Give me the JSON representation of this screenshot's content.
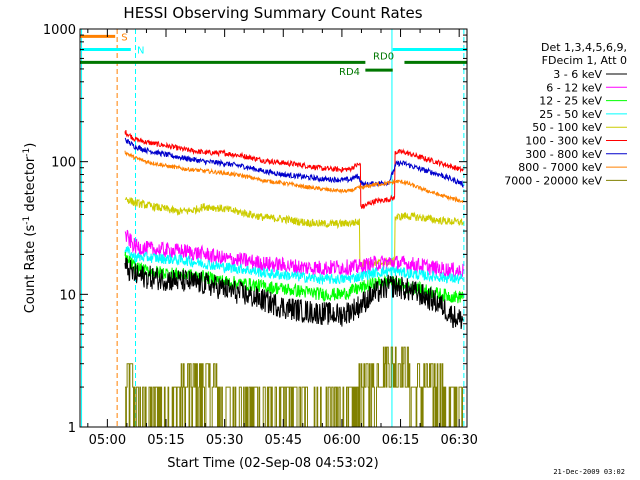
{
  "chart_data": {
    "type": "line",
    "title": "HESSI Observing Summary Count Rates",
    "xlabel": "Start Time (02-Sep-08 04:53:02)",
    "ylabel_main": "Count Rate (s",
    "ylabel_sup1": "-1",
    "ylabel_mid": " detector",
    "ylabel_sup2": "-1",
    "ylabel_end": ")",
    "x_range_min": [
      293,
      392
    ],
    "y_scale": "log",
    "ylim": [
      1,
      1000
    ],
    "x_ticks": [
      {
        "label": "05:00",
        "min": 300
      },
      {
        "label": "05:15",
        "min": 315
      },
      {
        "label": "05:30",
        "min": 330
      },
      {
        "label": "05:45",
        "min": 345
      },
      {
        "label": "06:00",
        "min": 360
      },
      {
        "label": "06:15",
        "min": 375
      },
      {
        "label": "06:30",
        "min": 390
      }
    ],
    "y_ticks": [
      {
        "label": "1",
        "value": 1
      },
      {
        "label": "10",
        "value": 10
      },
      {
        "label": "100",
        "value": 100
      },
      {
        "label": "1000",
        "value": 1000
      }
    ],
    "legend": {
      "position": "right",
      "header": [
        "Det 1,3,4,5,6,9,",
        "FDecim 1, Att 0"
      ],
      "entries": [
        {
          "label": "3 - 6 keV",
          "color": "#000000"
        },
        {
          "label": "6 - 12 keV",
          "color": "#ff00ff"
        },
        {
          "label": "12 - 25 keV",
          "color": "#00ff00"
        },
        {
          "label": "25 - 50 keV",
          "color": "#00ffff"
        },
        {
          "label": "50 - 100 keV",
          "color": "#cccc00"
        },
        {
          "label": "100 - 300 keV",
          "color": "#ff0000"
        },
        {
          "label": "300 - 800 keV",
          "color": "#0000cc"
        },
        {
          "label": "800 - 7000 keV",
          "color": "#ff8000"
        },
        {
          "label": "7000 - 20000 keV",
          "color": "#808000"
        }
      ]
    },
    "flags": [
      {
        "label": "S",
        "color": "#ff8000",
        "level": 880,
        "segments": [
          [
            293,
            302
          ]
        ]
      },
      {
        "label": "N",
        "color": "#00ffff",
        "level": 700,
        "segments": [
          [
            293,
            306
          ],
          [
            373,
            392
          ]
        ]
      },
      {
        "label": "RD0",
        "color": "#007700",
        "level": 560,
        "segments": [
          [
            293,
            366
          ],
          [
            376,
            392
          ]
        ]
      },
      {
        "label": "RD4",
        "color": "#007700",
        "level": 490,
        "segments": [
          [
            366,
            373
          ]
        ]
      }
    ],
    "vlines": [
      {
        "min": 302.5,
        "color": "#ff8000",
        "dashed": true
      },
      {
        "min": 307.2,
        "color": "#00ffff",
        "dashed": true
      },
      {
        "min": 372.8,
        "color": "#00ffff",
        "dashed": false
      },
      {
        "min": 391.2,
        "color": "#00ffff",
        "dashed": true
      },
      {
        "min": 293.4,
        "color": "#00ffff",
        "dashed": false
      }
    ],
    "series": [
      {
        "name": "100 - 300 keV",
        "color": "#ff0000",
        "points": [
          [
            304.5,
            168
          ],
          [
            307,
            148
          ],
          [
            310,
            140
          ],
          [
            315,
            132
          ],
          [
            320,
            123
          ],
          [
            325,
            117
          ],
          [
            330,
            116
          ],
          [
            335,
            110
          ],
          [
            340,
            102
          ],
          [
            345,
            98
          ],
          [
            350,
            94
          ],
          [
            355,
            89
          ],
          [
            360,
            87
          ],
          [
            362,
            88
          ],
          [
            364,
            95
          ],
          [
            365.5,
            46
          ],
          [
            368,
            50
          ],
          [
            372,
            52
          ],
          [
            373,
            53
          ],
          [
            374,
            118
          ],
          [
            376,
            118
          ],
          [
            380,
            108
          ],
          [
            385,
            98
          ],
          [
            390,
            88
          ],
          [
            391,
            86
          ]
        ]
      },
      {
        "name": "300 - 800 keV",
        "color": "#0000cc",
        "points": [
          [
            304.5,
            147
          ],
          [
            307,
            130
          ],
          [
            310,
            122
          ],
          [
            315,
            113
          ],
          [
            320,
            106
          ],
          [
            325,
            100
          ],
          [
            330,
            97
          ],
          [
            335,
            92
          ],
          [
            340,
            85
          ],
          [
            345,
            80
          ],
          [
            350,
            77
          ],
          [
            355,
            74
          ],
          [
            360,
            73
          ],
          [
            362,
            73
          ],
          [
            364,
            78
          ],
          [
            365.5,
            67
          ],
          [
            368,
            68
          ],
          [
            372,
            70
          ],
          [
            374,
            97
          ],
          [
            376,
            97
          ],
          [
            380,
            88
          ],
          [
            385,
            80
          ],
          [
            390,
            70
          ],
          [
            391,
            67
          ]
        ]
      },
      {
        "name": "800 - 7000 keV",
        "color": "#ff8000",
        "points": [
          [
            304.5,
            118
          ],
          [
            307,
            107
          ],
          [
            310,
            100
          ],
          [
            315,
            93
          ],
          [
            320,
            88
          ],
          [
            325,
            85
          ],
          [
            330,
            82
          ],
          [
            335,
            78
          ],
          [
            340,
            72
          ],
          [
            345,
            69
          ],
          [
            350,
            65
          ],
          [
            355,
            62
          ],
          [
            360,
            60
          ],
          [
            362,
            60
          ],
          [
            364,
            63
          ],
          [
            365.5,
            64
          ],
          [
            368,
            67
          ],
          [
            372,
            69
          ],
          [
            374,
            71
          ],
          [
            376,
            70
          ],
          [
            380,
            63
          ],
          [
            385,
            56
          ],
          [
            390,
            51
          ],
          [
            391,
            50
          ]
        ]
      },
      {
        "name": "50 - 100 keV",
        "color": "#cccc00",
        "points": [
          [
            304.5,
            53
          ],
          [
            307,
            49
          ],
          [
            310,
            47
          ],
          [
            315,
            44
          ],
          [
            318,
            42
          ],
          [
            322,
            43
          ],
          [
            325,
            46
          ],
          [
            330,
            44
          ],
          [
            335,
            41
          ],
          [
            340,
            38
          ],
          [
            345,
            37
          ],
          [
            350,
            35
          ],
          [
            355,
            34
          ],
          [
            360,
            34
          ],
          [
            364,
            35
          ],
          [
            365,
            17
          ],
          [
            368,
            17
          ],
          [
            372,
            17.5
          ],
          [
            373,
            17.5
          ],
          [
            374,
            38
          ],
          [
            376,
            39
          ],
          [
            380,
            38
          ],
          [
            385,
            36
          ],
          [
            390,
            35
          ],
          [
            391,
            35
          ]
        ]
      },
      {
        "name": "6 - 12 keV",
        "color": "#ff00ff",
        "points": [
          [
            304.5,
            28
          ],
          [
            307,
            23
          ],
          [
            310,
            22
          ],
          [
            315,
            21.5
          ],
          [
            320,
            21
          ],
          [
            325,
            20
          ],
          [
            330,
            18.5
          ],
          [
            335,
            18
          ],
          [
            340,
            17
          ],
          [
            345,
            16.5
          ],
          [
            350,
            16
          ],
          [
            355,
            15.8
          ],
          [
            360,
            16
          ],
          [
            364,
            16
          ],
          [
            368,
            17
          ],
          [
            372,
            17.5
          ],
          [
            374,
            17.3
          ],
          [
            376,
            17
          ],
          [
            380,
            16.5
          ],
          [
            385,
            15.5
          ],
          [
            390,
            15
          ],
          [
            391,
            15
          ]
        ]
      },
      {
        "name": "25 - 50 keV",
        "color": "#00ffff",
        "points": [
          [
            304.5,
            22
          ],
          [
            307,
            19
          ],
          [
            310,
            19
          ],
          [
            315,
            18.5
          ],
          [
            320,
            18
          ],
          [
            325,
            17
          ],
          [
            330,
            16
          ],
          [
            335,
            15.5
          ],
          [
            340,
            14.5
          ],
          [
            345,
            14
          ],
          [
            350,
            13.5
          ],
          [
            355,
            13
          ],
          [
            360,
            13
          ],
          [
            364,
            13.5
          ],
          [
            368,
            14.5
          ],
          [
            372,
            15
          ],
          [
            374,
            15
          ],
          [
            376,
            14.5
          ],
          [
            380,
            14
          ],
          [
            385,
            13.5
          ],
          [
            390,
            13
          ],
          [
            391,
            13
          ]
        ]
      },
      {
        "name": "12 - 25 keV",
        "color": "#00ff00",
        "points": [
          [
            304.5,
            19
          ],
          [
            307,
            16
          ],
          [
            310,
            15
          ],
          [
            315,
            14.5
          ],
          [
            320,
            14
          ],
          [
            325,
            13.5
          ],
          [
            330,
            12.5
          ],
          [
            335,
            12
          ],
          [
            340,
            11.5
          ],
          [
            345,
            11
          ],
          [
            350,
            10.5
          ],
          [
            355,
            10
          ],
          [
            360,
            10
          ],
          [
            364,
            11
          ],
          [
            368,
            12
          ],
          [
            372,
            12.5
          ],
          [
            374,
            12
          ],
          [
            376,
            11.5
          ],
          [
            380,
            11
          ],
          [
            385,
            10
          ],
          [
            390,
            9.5
          ],
          [
            391,
            10
          ]
        ]
      },
      {
        "name": "3 - 6 keV",
        "color": "#000000",
        "points": [
          [
            304.5,
            16
          ],
          [
            307,
            14
          ],
          [
            310,
            13.5
          ],
          [
            315,
            13
          ],
          [
            320,
            12.5
          ],
          [
            325,
            12
          ],
          [
            330,
            11
          ],
          [
            335,
            10
          ],
          [
            340,
            9
          ],
          [
            345,
            8
          ],
          [
            350,
            7.5
          ],
          [
            355,
            7.2
          ],
          [
            360,
            7
          ],
          [
            364,
            8
          ],
          [
            368,
            10
          ],
          [
            372,
            11.5
          ],
          [
            374,
            11.5
          ],
          [
            376,
            11
          ],
          [
            380,
            10
          ],
          [
            385,
            8.5
          ],
          [
            388,
            7
          ],
          [
            390,
            6.5
          ],
          [
            391,
            6.5
          ]
        ]
      }
    ],
    "attenuator_trace": {
      "name": "7000 - 20000 keV",
      "color": "#808000",
      "low": 1,
      "levels": [
        2,
        3,
        4
      ]
    }
  },
  "footer": {
    "date_stamp": "21-Dec-2009 03:02"
  }
}
